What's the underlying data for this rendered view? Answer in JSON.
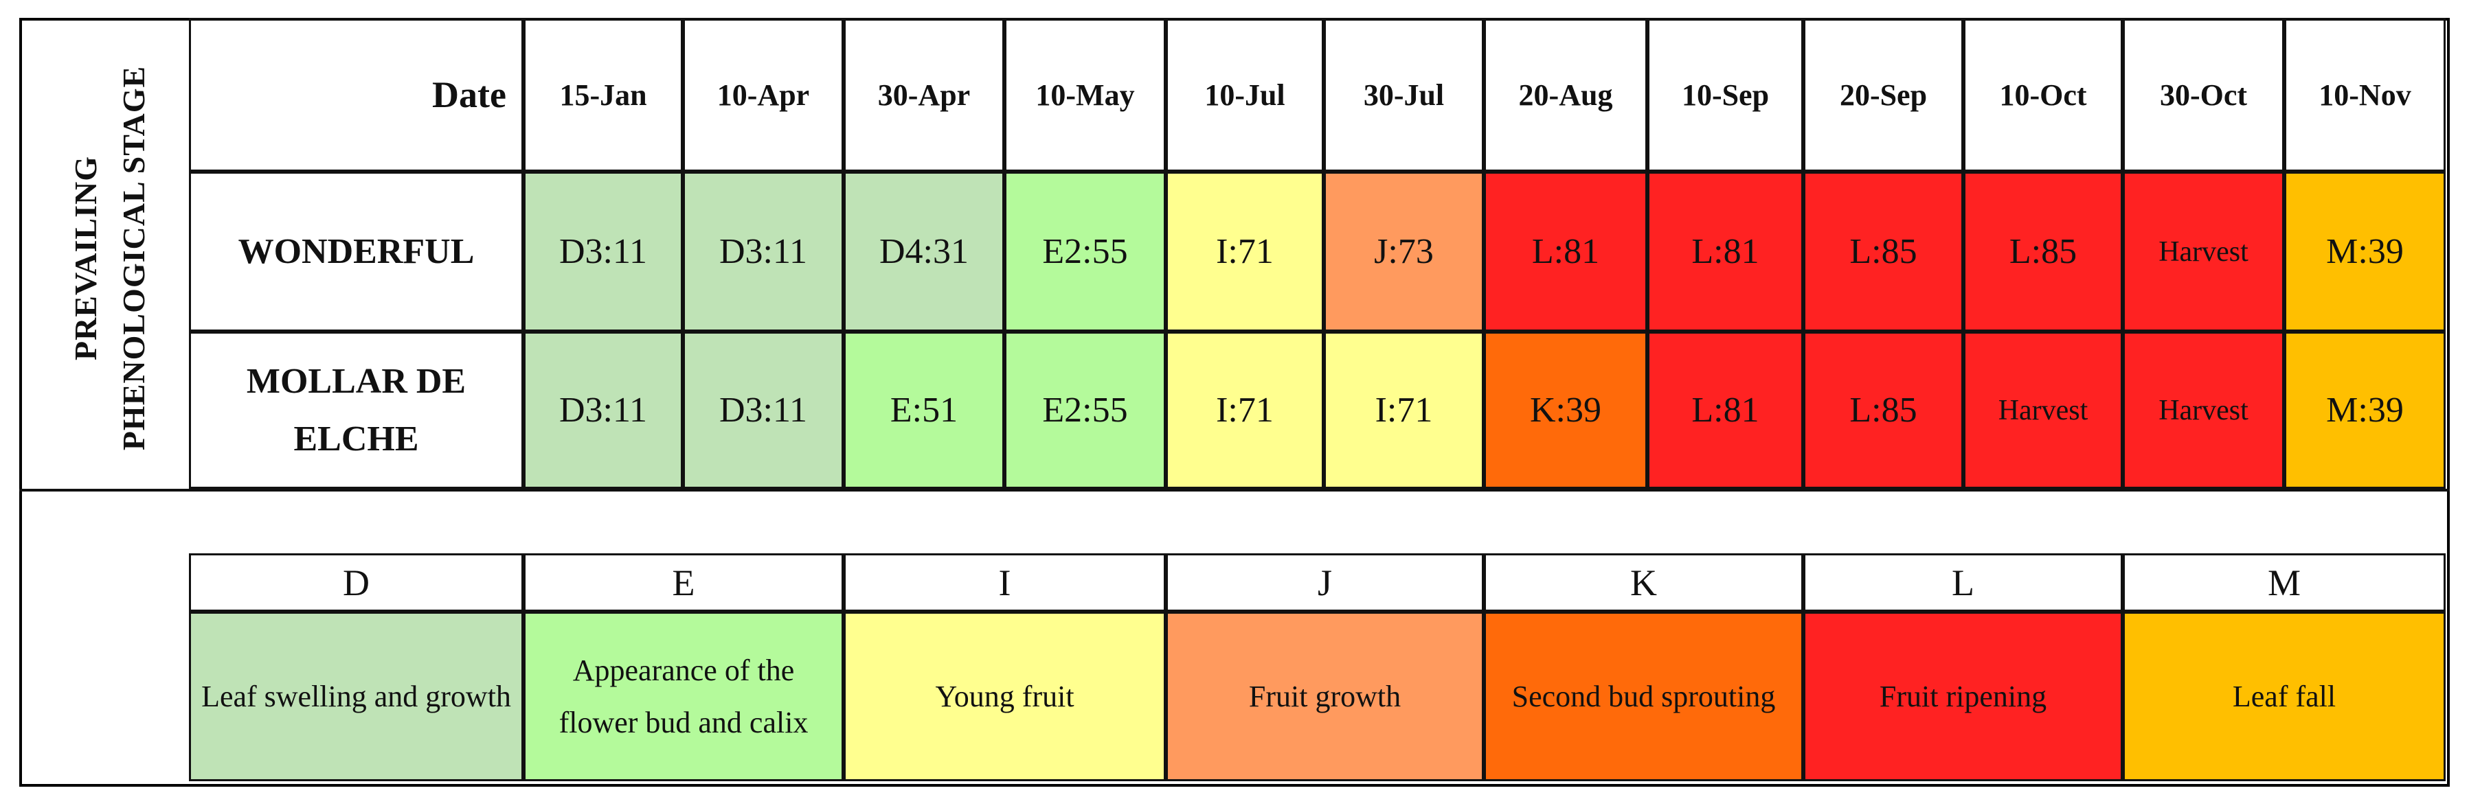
{
  "side_title": {
    "line1": "PREVAILING",
    "line2": "PHENOLOGICAL STAGE"
  },
  "header": {
    "date_label": "Date",
    "dates": [
      "15-Jan",
      "10-Apr",
      "30-Apr",
      "10-May",
      "10-Jul",
      "30-Jul",
      "20-Aug",
      "10-Sep",
      "20-Sep",
      "10-Oct",
      "30-Oct",
      "10-Nov"
    ]
  },
  "rows": [
    {
      "label": "WONDERFUL",
      "cells": [
        "D3:11",
        "D3:11",
        "D4:31",
        "E2:55",
        "I:71",
        "J:73",
        "L:81",
        "L:81",
        "L:85",
        "L:85",
        "Harvest",
        "M:39"
      ]
    },
    {
      "label": "MOLLAR DE ELCHE",
      "cells": [
        "D3:11",
        "D3:11",
        "E:51",
        "E2:55",
        "I:71",
        "I:71",
        "K:39",
        "L:81",
        "L:85",
        "Harvest",
        "Harvest",
        "M:39"
      ]
    }
  ],
  "legend": [
    {
      "letter": "D",
      "description": "Leaf swelling and growth"
    },
    {
      "letter": "E",
      "description": "Appearance of the flower bud and calix"
    },
    {
      "letter": "I",
      "description": "Young fruit"
    },
    {
      "letter": "J",
      "description": "Fruit growth"
    },
    {
      "letter": "K",
      "description": "Second bud sprouting"
    },
    {
      "letter": "L",
      "description": "Fruit ripening"
    },
    {
      "letter": "M",
      "description": "Leaf fall"
    }
  ],
  "stage_colors": {
    "D": "#bfe3b6",
    "E": "#b4fa9b",
    "I": "#ffff8f",
    "J": "#ff9a5e",
    "K": "#ff6a0a",
    "L": "#ff2222",
    "M": "#ffbf00"
  }
}
